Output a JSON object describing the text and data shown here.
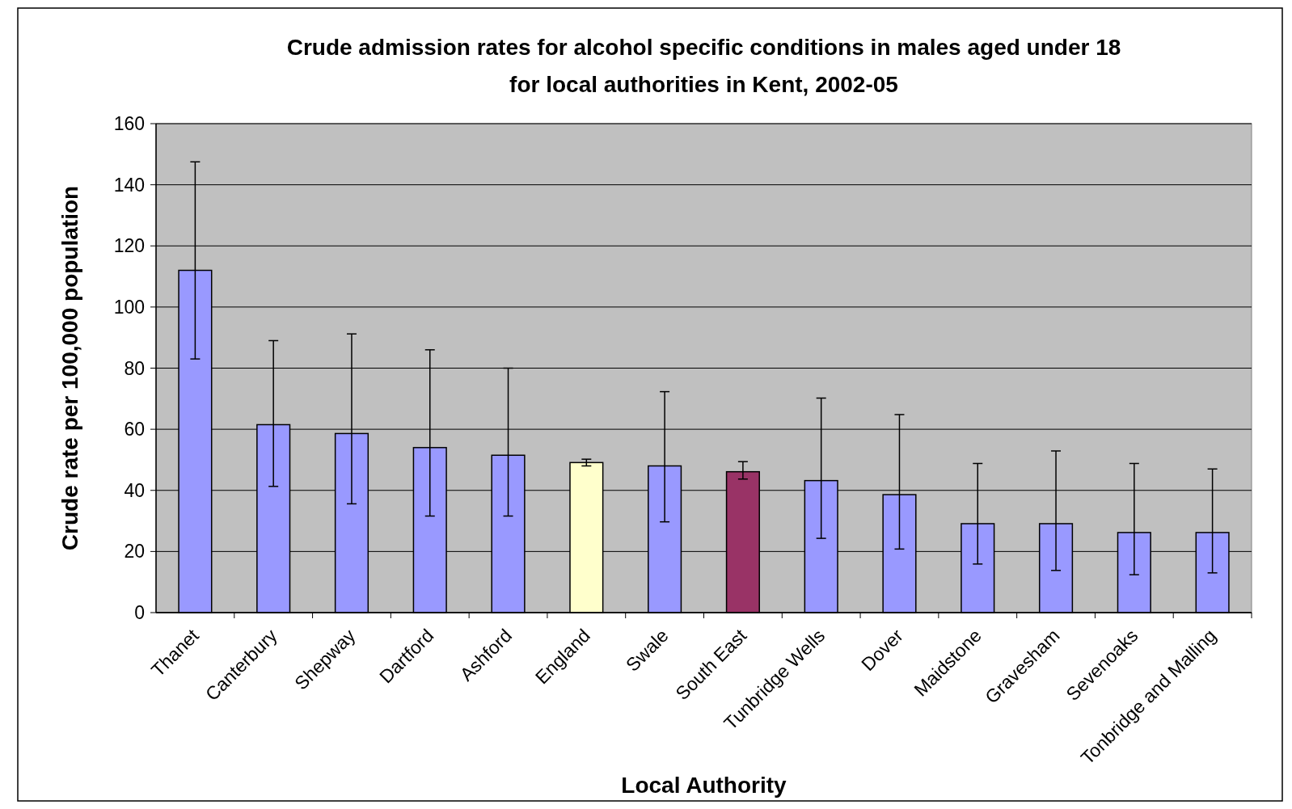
{
  "chart_data": {
    "type": "bar",
    "title": "Crude admission rates for alcohol specific conditions in males aged under 18 for local authorities in Kent, 2002-05",
    "xlabel": "Local Authority",
    "ylabel": "Crude rate per 100,000 population",
    "categories": [
      "Thanet",
      "Canterbury",
      "Shepway",
      "Dartford",
      "Ashford",
      "England",
      "Swale",
      "South East",
      "Tunbridge Wells",
      "Dover",
      "Maidstone",
      "Gravesham",
      "Sevenoaks",
      "Tonbridge and Malling"
    ],
    "values": [
      112,
      61.5,
      58.6,
      54,
      51.5,
      49.1,
      48,
      46.1,
      43.2,
      38.6,
      29.1,
      29.1,
      26.2,
      26.2
    ],
    "colors": [
      "#9999ff",
      "#9999ff",
      "#9999ff",
      "#9999ff",
      "#9999ff",
      "#ffffcc",
      "#9999ff",
      "#993366",
      "#9999ff",
      "#9999ff",
      "#9999ff",
      "#9999ff",
      "#9999ff",
      "#9999ff"
    ],
    "errors": [
      [
        83,
        147.5
      ],
      [
        41.3,
        89
      ],
      [
        35.6,
        91.2
      ],
      [
        31.6,
        86
      ],
      [
        31.6,
        80
      ],
      [
        48,
        50.2
      ],
      [
        29.7,
        72.3
      ],
      [
        43.7,
        49.4
      ],
      [
        24.3,
        70.2
      ],
      [
        20.8,
        64.8
      ],
      [
        15.9,
        48.8
      ],
      [
        13.8,
        52.9
      ],
      [
        12.4,
        48.8
      ],
      [
        13,
        47
      ]
    ],
    "ylim": [
      0,
      160
    ],
    "yticks": [
      0,
      20,
      40,
      60,
      80,
      100,
      120,
      140,
      160
    ],
    "grid": "y"
  }
}
